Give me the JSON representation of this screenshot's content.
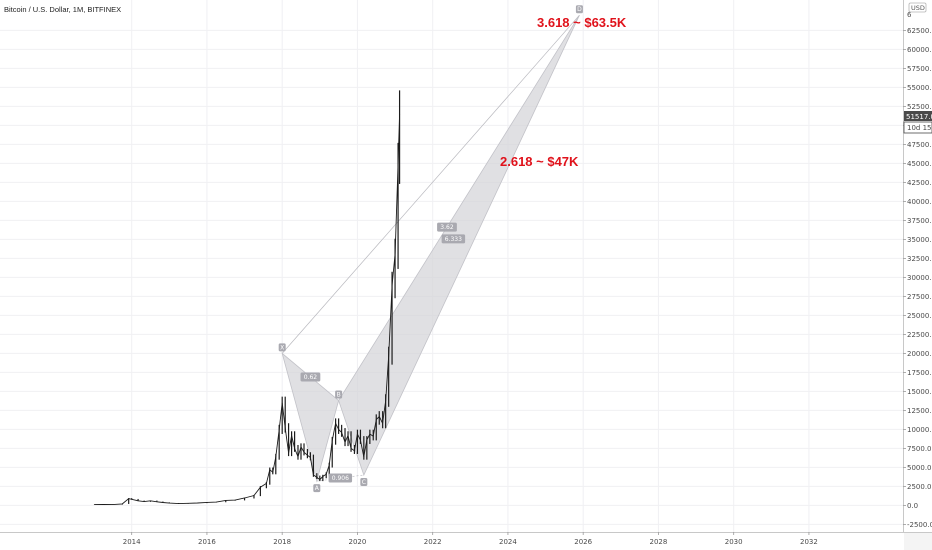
{
  "header": {
    "symbol_title": "Bitcoin / U.S. Dollar, 1M, BITFINEX"
  },
  "axis": {
    "currency_label": "USD",
    "countdown": "10d 15h",
    "last_price": "51517.0",
    "top_tick": "6"
  },
  "annotations": {
    "target_upper": "3.618  ~ $63.5K",
    "target_lower": "2.618  ~ $47K"
  },
  "colors": {
    "pattern_fill": "#d6d6da",
    "pattern_stroke": "#c2c2c8",
    "label_bg": "#a9a9b0",
    "candle": "#1c1c1c",
    "annotation": "#e0121b"
  },
  "chart_data": {
    "type": "line",
    "title": "Bitcoin / U.S. Dollar, 1M, BITFINEX",
    "xlabel": "",
    "ylabel": "",
    "xlim": [
      2010.5,
      2034.5
    ],
    "ylim": [
      -3500,
      66500
    ],
    "x_ticks": [
      "2014",
      "2016",
      "2018",
      "2020",
      "2022",
      "2024",
      "2026",
      "2028",
      "2030",
      "2032"
    ],
    "y_ticks": [
      "-2500.0",
      "0.0",
      "2500.0",
      "5000.0",
      "7500.0",
      "10000.0",
      "12500.0",
      "15000.0",
      "17500.0",
      "20000.0",
      "22500.0",
      "25000.0",
      "27500.0",
      "30000.0",
      "32500.0",
      "35000.0",
      "37500.0",
      "40000.0",
      "42500.0",
      "45000.0",
      "47500.0",
      "50000.0",
      "52500.0",
      "55000.0",
      "57500.0",
      "60000.0",
      "62500.0"
    ],
    "grid": true,
    "series": [
      {
        "points": [
          [
            2013.0,
            100
          ],
          [
            2013.25,
            130
          ],
          [
            2013.5,
            110
          ],
          [
            2013.75,
            200
          ],
          [
            2013.92,
            900
          ],
          [
            2014.0,
            800
          ],
          [
            2014.17,
            600
          ],
          [
            2014.33,
            500
          ],
          [
            2014.5,
            600
          ],
          [
            2014.67,
            480
          ],
          [
            2014.83,
            380
          ],
          [
            2015.0,
            300
          ],
          [
            2015.25,
            240
          ],
          [
            2015.5,
            270
          ],
          [
            2015.75,
            320
          ],
          [
            2016.0,
            400
          ],
          [
            2016.25,
            440
          ],
          [
            2016.5,
            660
          ],
          [
            2016.75,
            700
          ],
          [
            2017.0,
            970
          ],
          [
            2017.25,
            1300
          ],
          [
            2017.42,
            2400
          ],
          [
            2017.58,
            2900
          ],
          [
            2017.67,
            4700
          ],
          [
            2017.75,
            4350
          ],
          [
            2017.83,
            6400
          ],
          [
            2017.92,
            10000
          ],
          [
            2018.0,
            13500
          ],
          [
            2018.08,
            10200
          ],
          [
            2018.17,
            6900
          ],
          [
            2018.25,
            9200
          ],
          [
            2018.33,
            7500
          ],
          [
            2018.42,
            6400
          ],
          [
            2018.5,
            7700
          ],
          [
            2018.58,
            7000
          ],
          [
            2018.67,
            6600
          ],
          [
            2018.75,
            6300
          ],
          [
            2018.83,
            4000
          ],
          [
            2018.92,
            3700
          ],
          [
            2019.0,
            3400
          ],
          [
            2019.08,
            3800
          ],
          [
            2019.17,
            4100
          ],
          [
            2019.25,
            5300
          ],
          [
            2019.33,
            8500
          ],
          [
            2019.42,
            10800
          ],
          [
            2019.5,
            10000
          ],
          [
            2019.58,
            9600
          ],
          [
            2019.67,
            8300
          ],
          [
            2019.75,
            9200
          ],
          [
            2019.83,
            7500
          ],
          [
            2019.92,
            7200
          ],
          [
            2020.0,
            9400
          ],
          [
            2020.08,
            8600
          ],
          [
            2020.17,
            6400
          ],
          [
            2020.25,
            8600
          ],
          [
            2020.33,
            9400
          ],
          [
            2020.42,
            9100
          ],
          [
            2020.5,
            11300
          ],
          [
            2020.58,
            11700
          ],
          [
            2020.67,
            10800
          ],
          [
            2020.75,
            13800
          ],
          [
            2020.83,
            19700
          ],
          [
            2020.92,
            29000
          ],
          [
            2021.0,
            33100
          ],
          [
            2021.08,
            45000
          ],
          [
            2021.12,
            51517
          ]
        ]
      }
    ],
    "harmonic_pattern": {
      "points": {
        "X": [
          2018.0,
          20000
        ],
        "A": [
          2018.92,
          3200
        ],
        "B": [
          2019.5,
          13800
        ],
        "C": [
          2020.17,
          4000
        ],
        "D": [
          2025.9,
          64500
        ]
      },
      "ratios": {
        "XA_B": "0.62",
        "AB_C": "0.906",
        "BC_D": "3.62",
        "XA_D": "6.333"
      }
    },
    "annotations": [
      "3.618  ~ $63.5K",
      "2.618  ~ $47K"
    ]
  }
}
